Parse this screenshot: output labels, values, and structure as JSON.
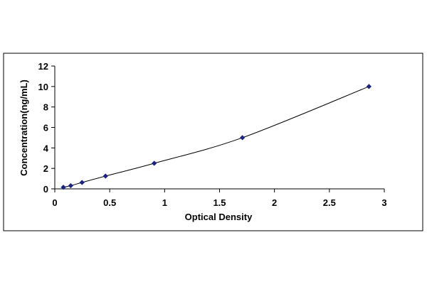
{
  "chart_data": {
    "type": "scatter",
    "title": "",
    "xlabel": "Optical Density",
    "ylabel": "Concentration(ng/mL)",
    "xlim": [
      0,
      3
    ],
    "ylim": [
      0,
      12
    ],
    "xticks": [
      "0",
      "0.5",
      "1",
      "1.5",
      "2",
      "2.5",
      "3"
    ],
    "yticks": [
      "0",
      "2",
      "4",
      "6",
      "8",
      "10",
      "12"
    ],
    "grid": false,
    "legend": "none",
    "trendline": true,
    "series": [
      {
        "x": [
          0.078,
          0.145,
          0.248,
          0.462,
          0.905,
          1.708,
          2.86
        ],
        "y": [
          0.156,
          0.313,
          0.625,
          1.25,
          2.5,
          5,
          10
        ]
      }
    ],
    "colors": {
      "marker": "#1a237e",
      "line": "#000000",
      "frame": "#000000"
    }
  }
}
